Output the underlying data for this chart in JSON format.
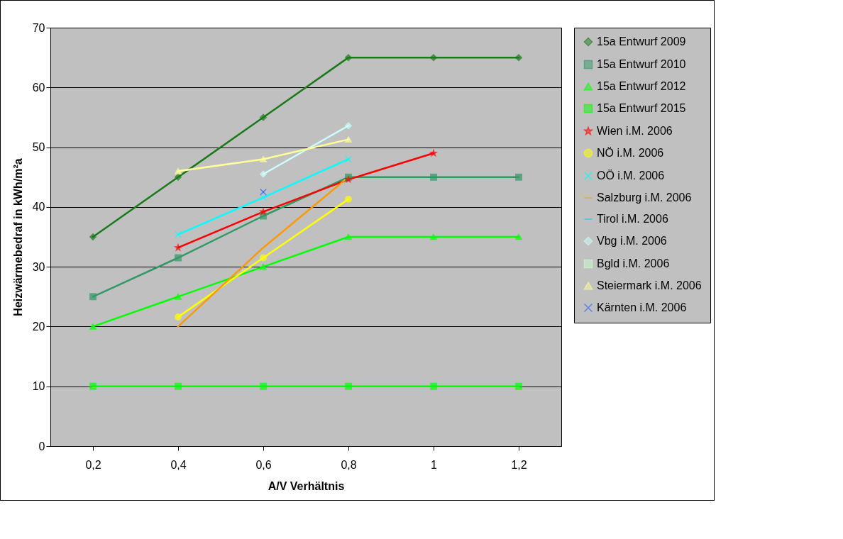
{
  "chart_data": {
    "type": "line",
    "xlabel": "A/V Verhältnis",
    "ylabel": "Heizwärmebedraf in kWh/m²a",
    "categories": [
      "0,2",
      "0,4",
      "0,6",
      "0,8",
      "1",
      "1,2"
    ],
    "ylim": [
      0,
      70
    ],
    "yticks": [
      0,
      10,
      20,
      30,
      40,
      50,
      60,
      70
    ],
    "grid": "y",
    "legend": "right",
    "series": [
      {
        "name": "15a Entwurf 2009",
        "color": "#1a7a1a",
        "marker": "diamond",
        "values": [
          35,
          45,
          55,
          65,
          65,
          65
        ]
      },
      {
        "name": "15a Entwurf 2010",
        "color": "#339966",
        "marker": "square",
        "values": [
          25,
          31.5,
          38.5,
          45,
          45,
          45
        ]
      },
      {
        "name": "15a Entwurf 2012",
        "color": "#00ff00",
        "marker": "triangle",
        "values": [
          20,
          25,
          30,
          35,
          35,
          35
        ]
      },
      {
        "name": "15a Entwurf 2015",
        "color": "#00ff00",
        "marker": "square",
        "values": [
          10,
          10,
          10,
          10,
          10,
          10
        ]
      },
      {
        "name": "Wien i.M. 2006",
        "color": "#ff0000",
        "marker": "star",
        "values": [
          null,
          33.2,
          39.2,
          44.6,
          49,
          null
        ]
      },
      {
        "name": "NÖ i.M. 2006",
        "color": "#ffff00",
        "marker": "circle",
        "values": [
          null,
          21.6,
          31.5,
          41.3,
          null,
          null
        ]
      },
      {
        "name": "OÖ i.M. 2006",
        "color": "#00ffff",
        "marker": "cross",
        "values": [
          null,
          35.4,
          41.6,
          48,
          null,
          null
        ]
      },
      {
        "name": "Salzburg i.M. 2006",
        "color": "#ff9900",
        "marker": "none",
        "values": [
          null,
          20,
          33.2,
          45,
          null,
          null
        ]
      },
      {
        "name": "Tirol i.M. 2006",
        "color": "#00ccff",
        "marker": "none",
        "values": [
          null,
          null,
          null,
          null,
          null,
          null
        ]
      },
      {
        "name": "Vbg i.M. 2006",
        "color": "#ccffff",
        "marker": "diamond",
        "values": [
          null,
          null,
          45.5,
          53.6,
          null,
          null
        ]
      },
      {
        "name": "Bgld i.M. 2006",
        "color": "#ccffcc",
        "marker": "square",
        "values": [
          null,
          null,
          null,
          null,
          null,
          null
        ]
      },
      {
        "name": "Steiermark i.M. 2006",
        "color": "#ffff99",
        "marker": "triangle",
        "values": [
          null,
          46,
          48,
          51.3,
          null,
          null
        ]
      },
      {
        "name": "Kärnten i.M. 2006",
        "color": "#3366ff",
        "marker": "cross",
        "values": [
          null,
          null,
          42.5,
          null,
          null,
          null
        ]
      }
    ]
  }
}
